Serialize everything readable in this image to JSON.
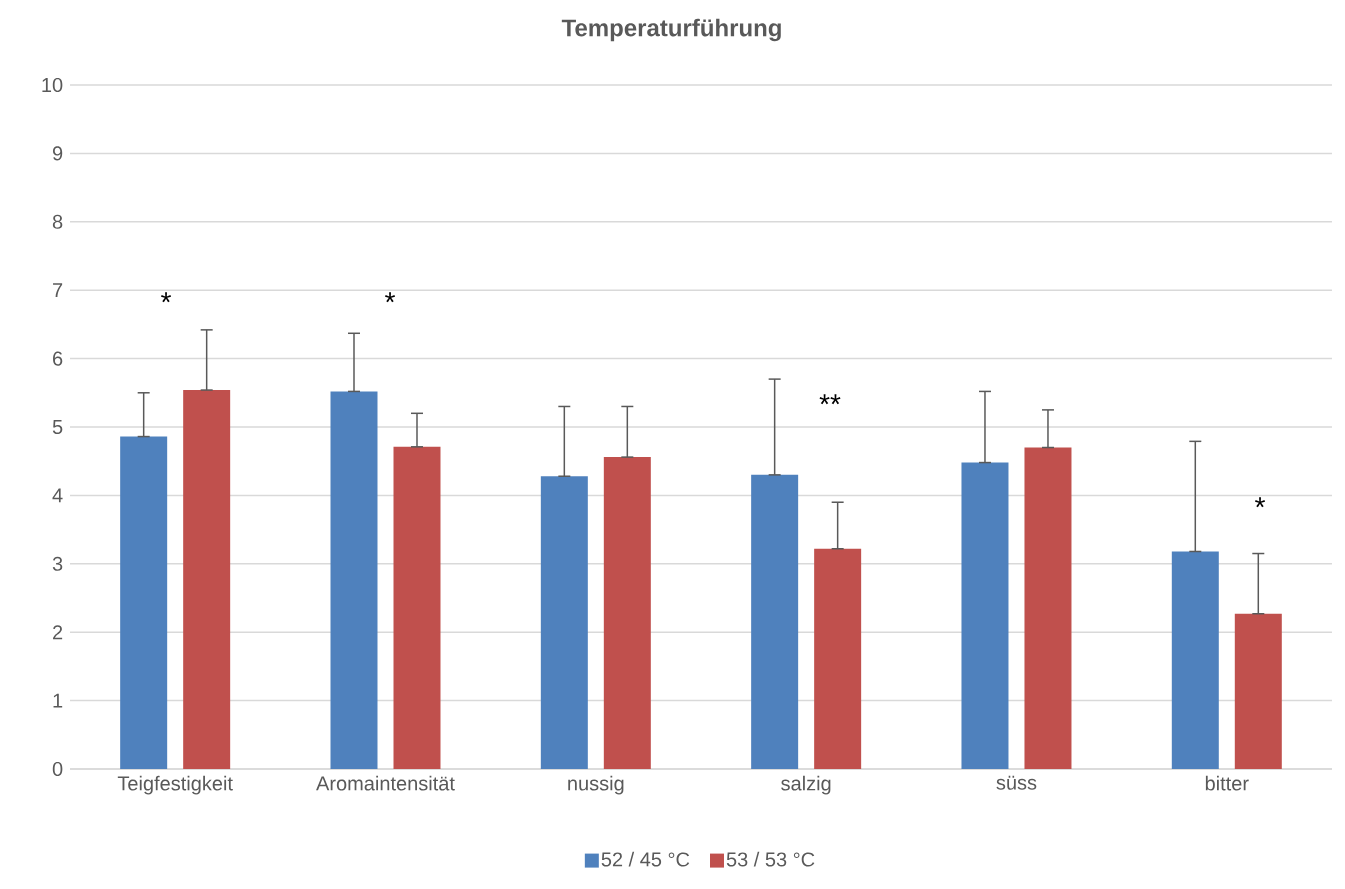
{
  "chart_data": {
    "type": "bar",
    "title": "Temperaturführung",
    "categories": [
      "Teigfestigkeit",
      "Aromaintensität",
      "nussig",
      "salzig",
      "süss",
      "bitter"
    ],
    "series": [
      {
        "name": "52 / 45 °C",
        "color": "#4f81bd",
        "values": [
          4.86,
          5.52,
          4.28,
          4.3,
          4.48,
          3.18
        ],
        "errors": [
          [
            4.86,
            5.5
          ],
          [
            5.52,
            6.37
          ],
          [
            4.28,
            5.3
          ],
          [
            4.3,
            5.7
          ],
          [
            4.48,
            5.52
          ],
          [
            3.18,
            4.79
          ]
        ]
      },
      {
        "name": "53 / 53 °C",
        "color": "#c0504d",
        "values": [
          5.54,
          4.71,
          4.56,
          3.22,
          4.7,
          2.27
        ],
        "errors": [
          [
            5.54,
            6.42
          ],
          [
            4.71,
            5.2
          ],
          [
            4.56,
            5.3
          ],
          [
            3.22,
            3.9
          ],
          [
            4.7,
            5.25
          ],
          [
            2.27,
            3.15
          ]
        ]
      }
    ],
    "ylim": [
      0,
      10
    ],
    "yticks": [
      0,
      1,
      2,
      3,
      4,
      5,
      6,
      7,
      8,
      9,
      10
    ],
    "grid": "y",
    "legend": "bottom",
    "annotations": [
      "*",
      "*",
      "**",
      "*"
    ]
  }
}
